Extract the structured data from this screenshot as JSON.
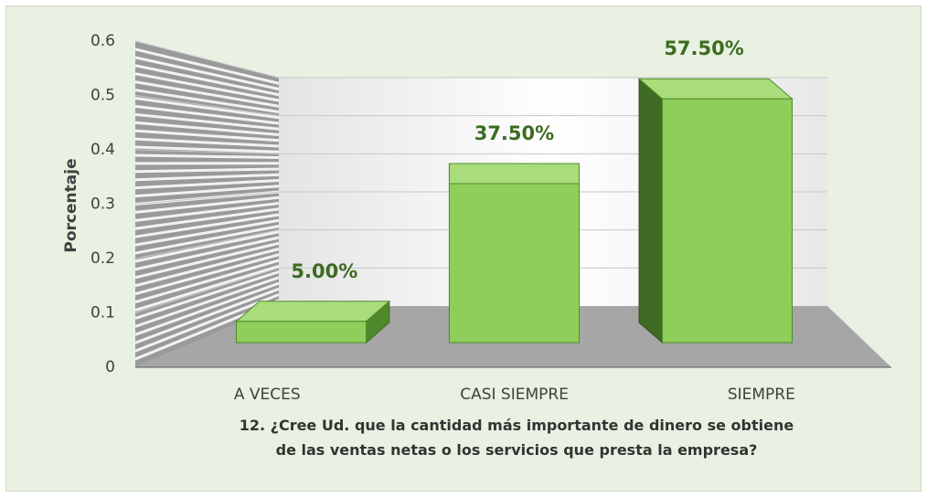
{
  "chart_data": {
    "type": "bar3d",
    "categories": [
      "A VECES",
      "CASI SIEMPRE",
      "SIEMPRE"
    ],
    "values": [
      0.05,
      0.375,
      0.575
    ],
    "value_labels": [
      "5.00%",
      "37.50%",
      "57.50%"
    ],
    "color": "#8fce5a",
    "ylabel": "Porcentaje",
    "xlabel": "12. ¿Cree Ud. que la cantidad más importante de dinero se obtiene de las ventas netas o los servicios que presta la empresa?",
    "ylim": [
      0,
      0.6
    ],
    "yticks": [
      0,
      0.1,
      0.2,
      0.3,
      0.4,
      0.5,
      0.6
    ],
    "grid": true
  }
}
